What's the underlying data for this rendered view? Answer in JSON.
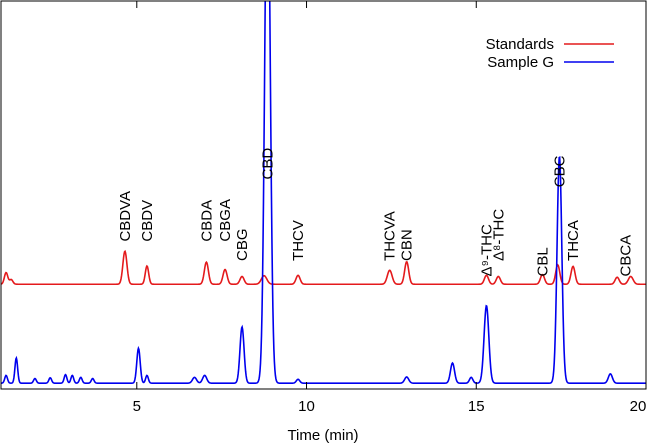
{
  "chart_data": {
    "type": "line",
    "xlabel": "Time (min)",
    "ylabel": "",
    "xlim": [
      1,
      20
    ],
    "ylim": [
      0,
      100
    ],
    "xticks": [
      5,
      10,
      15,
      20
    ],
    "grid": false,
    "legend_position": "top-right",
    "series": [
      {
        "name": "Standards",
        "color": "#e41a1c",
        "baseline": 27,
        "peaks": [
          {
            "t": 1.15,
            "h": 3.0,
            "w": 0.05
          },
          {
            "t": 1.3,
            "h": 1.2,
            "w": 0.05
          },
          {
            "t": 4.65,
            "h": 8.5,
            "w": 0.06
          },
          {
            "t": 5.3,
            "h": 4.7,
            "w": 0.05
          },
          {
            "t": 7.05,
            "h": 5.7,
            "w": 0.06
          },
          {
            "t": 7.6,
            "h": 3.8,
            "w": 0.06
          },
          {
            "t": 8.1,
            "h": 2.0,
            "w": 0.06
          },
          {
            "t": 8.75,
            "h": 2.2,
            "w": 0.08
          },
          {
            "t": 9.75,
            "h": 2.3,
            "w": 0.06
          },
          {
            "t": 12.45,
            "h": 3.6,
            "w": 0.07
          },
          {
            "t": 12.95,
            "h": 5.8,
            "w": 0.06
          },
          {
            "t": 15.3,
            "h": 2.3,
            "w": 0.06
          },
          {
            "t": 15.65,
            "h": 2.0,
            "w": 0.06
          },
          {
            "t": 16.95,
            "h": 2.5,
            "w": 0.06
          },
          {
            "t": 17.4,
            "h": 5.0,
            "w": 0.06
          },
          {
            "t": 17.85,
            "h": 4.6,
            "w": 0.06
          },
          {
            "t": 19.15,
            "h": 1.8,
            "w": 0.06
          },
          {
            "t": 19.55,
            "h": 2.0,
            "w": 0.07
          }
        ]
      },
      {
        "name": "Sample G",
        "color": "#0000ee",
        "baseline": 1.5,
        "peaks": [
          {
            "t": 1.15,
            "h": 2.0,
            "w": 0.04
          },
          {
            "t": 1.45,
            "h": 6.5,
            "w": 0.04
          },
          {
            "t": 2.0,
            "h": 1.2,
            "w": 0.04
          },
          {
            "t": 2.45,
            "h": 1.4,
            "w": 0.04
          },
          {
            "t": 2.9,
            "h": 2.2,
            "w": 0.04
          },
          {
            "t": 3.1,
            "h": 2.0,
            "w": 0.04
          },
          {
            "t": 3.35,
            "h": 1.5,
            "w": 0.04
          },
          {
            "t": 3.7,
            "h": 1.2,
            "w": 0.04
          },
          {
            "t": 5.05,
            "h": 9.0,
            "w": 0.05
          },
          {
            "t": 5.3,
            "h": 2.0,
            "w": 0.04
          },
          {
            "t": 6.7,
            "h": 1.5,
            "w": 0.06
          },
          {
            "t": 7.0,
            "h": 2.0,
            "w": 0.06
          },
          {
            "t": 8.1,
            "h": 14.5,
            "w": 0.06
          },
          {
            "t": 8.85,
            "h": 140,
            "w": 0.08
          },
          {
            "t": 9.75,
            "h": 1.0,
            "w": 0.05
          },
          {
            "t": 12.95,
            "h": 1.6,
            "w": 0.06
          },
          {
            "t": 14.3,
            "h": 5.2,
            "w": 0.06
          },
          {
            "t": 14.85,
            "h": 1.5,
            "w": 0.05
          },
          {
            "t": 15.3,
            "h": 20.0,
            "w": 0.07
          },
          {
            "t": 17.45,
            "h": 58.5,
            "w": 0.07
          },
          {
            "t": 18.95,
            "h": 2.4,
            "w": 0.06
          }
        ]
      }
    ],
    "annotations": [
      {
        "label": "CBDVA",
        "t": 4.65,
        "y": 38
      },
      {
        "label": "CBDV",
        "t": 5.3,
        "y": 38
      },
      {
        "label": "CBDA",
        "t": 7.05,
        "y": 38
      },
      {
        "label": "CBGA",
        "t": 7.6,
        "y": 38
      },
      {
        "label": "CBG",
        "t": 8.1,
        "y": 33
      },
      {
        "label": "CBD",
        "t": 8.85,
        "y": 54
      },
      {
        "label": "THCV",
        "t": 9.75,
        "y": 33
      },
      {
        "label": "THCVA",
        "t": 12.45,
        "y": 33
      },
      {
        "label": "CBN",
        "t": 12.95,
        "y": 33
      },
      {
        "label": "Δ⁹-THC",
        "t": 15.3,
        "y": 29
      },
      {
        "label": "Δ⁸-THC",
        "t": 15.65,
        "y": 33
      },
      {
        "label": "CBL",
        "t": 16.95,
        "y": 29
      },
      {
        "label": "CBC",
        "t": 17.45,
        "y": 52
      },
      {
        "label": "THCA",
        "t": 17.85,
        "y": 33
      },
      {
        "label": "CBCA",
        "t": 19.4,
        "y": 29
      }
    ]
  }
}
